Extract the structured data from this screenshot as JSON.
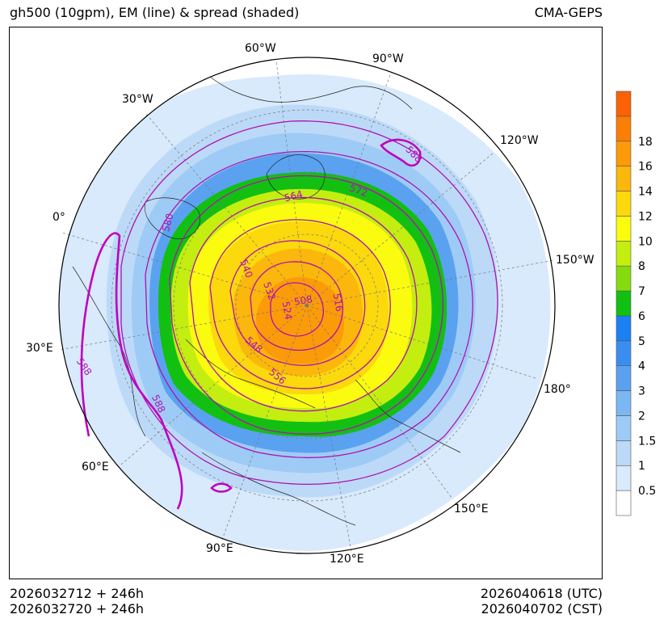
{
  "header": {
    "title_left": "gh500 (10gpm), EM (line) & spread (shaded)",
    "title_right": "CMA-GEPS"
  },
  "footer": {
    "init_utc": "2026032712 + 246h",
    "init_cst": "2026032720 + 246h",
    "valid_utc": "2026040618 (UTC)",
    "valid_cst": "2026040702 (CST)"
  },
  "map": {
    "projection": "north-polar-stereographic",
    "longitude_labels": [
      "60°W",
      "90°W",
      "30°W",
      "120°W",
      "0°",
      "150°W",
      "30°E",
      "180°",
      "60°E",
      "150°E",
      "90°E",
      "120°E"
    ],
    "contour_labels": [
      "588",
      "564",
      "572",
      "580",
      "540",
      "532",
      "524",
      "508",
      "516",
      "548",
      "556",
      "588",
      "588"
    ],
    "contour_color": "#b010b0"
  },
  "colorbar": {
    "ticks": [
      "0.5",
      "1",
      "1.5",
      "2",
      "3",
      "4",
      "5",
      "6",
      "7",
      "8",
      "10",
      "12",
      "14",
      "16",
      "18"
    ],
    "colors": [
      "#ffffff",
      "#d8eafb",
      "#bcdaf8",
      "#9ecbf6",
      "#7db7f3",
      "#5aa2f0",
      "#3a8ef0",
      "#1c80f5",
      "#12c012",
      "#86db0f",
      "#c4ee10",
      "#fbfb0f",
      "#fbd90d",
      "#fbb70b",
      "#fb9b09",
      "#fb7e07",
      "#fb6105"
    ]
  }
}
